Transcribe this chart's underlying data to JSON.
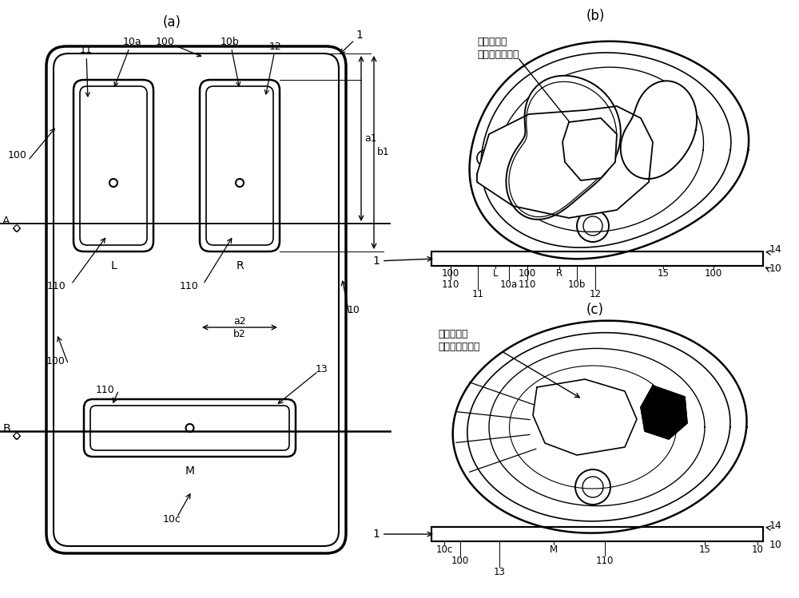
{
  "bg_color": "#ffffff",
  "line_color": "#000000",
  "fig_width": 10.0,
  "fig_height": 7.49,
  "panel_a_label": "(a)",
  "panel_b_label": "(b)",
  "panel_c_label": "(c)",
  "text_b_line1": "腹部大动脉",
  "text_b_line2": "（下行大动脉）"
}
